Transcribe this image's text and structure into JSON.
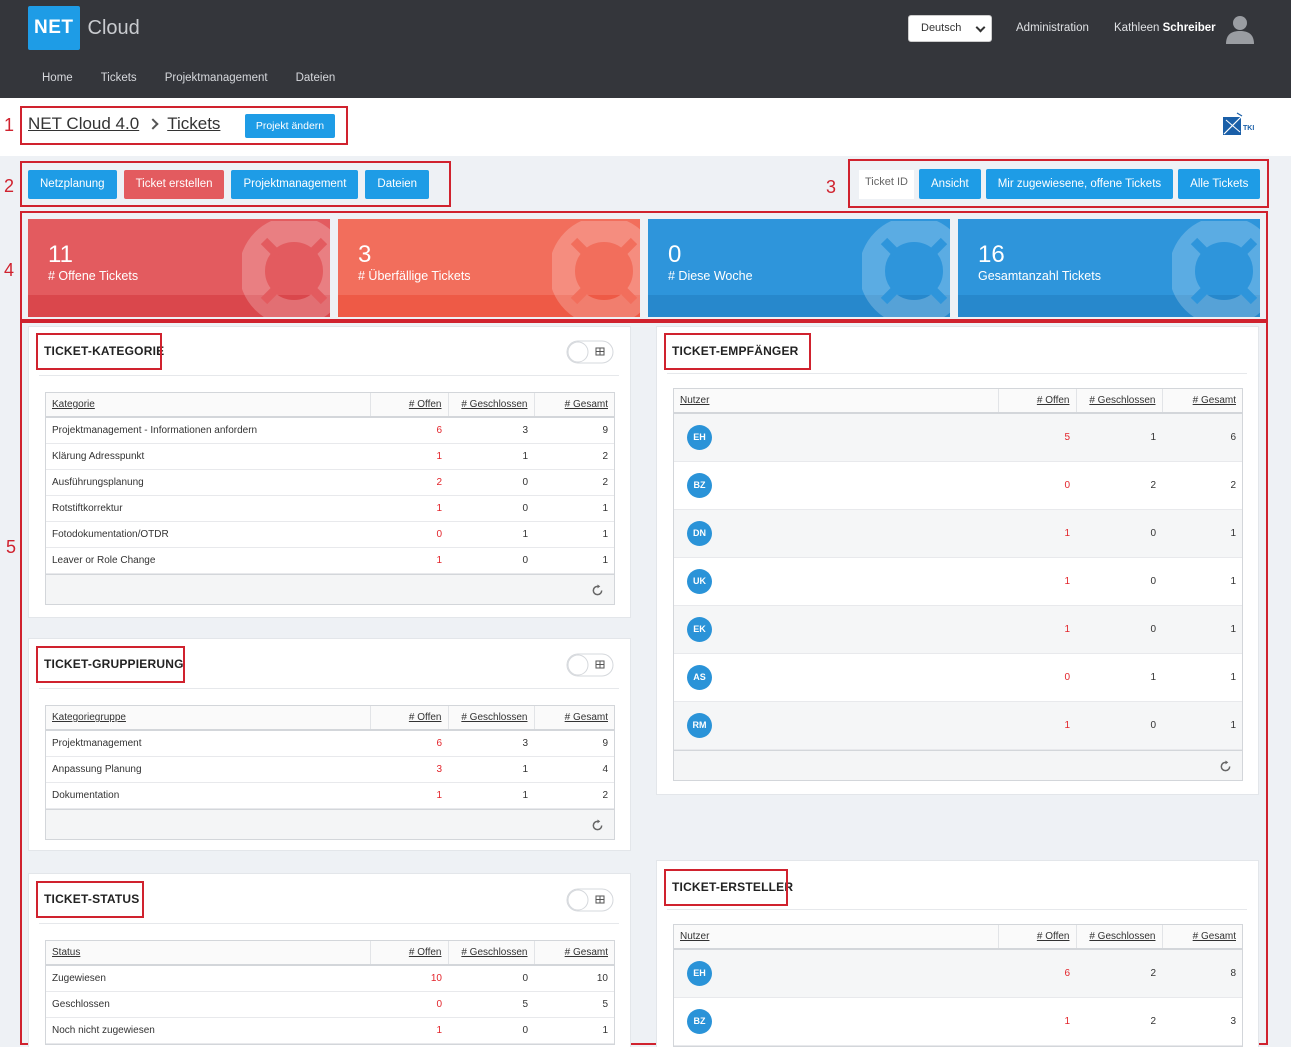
{
  "header": {
    "logo_net": "NET",
    "logo_cloud": "Cloud",
    "language": "Deutsch",
    "admin": "Administration",
    "user_first": "Kathleen",
    "user_last": "Schreiber",
    "nav": [
      "Home",
      "Tickets",
      "Projektmanagement",
      "Dateien"
    ]
  },
  "breadcrumb": {
    "project": "NET Cloud 4.0",
    "page": "Tickets",
    "change_project": "Projekt ändern",
    "partner_logo": "TKI"
  },
  "markers": [
    "1",
    "2",
    "3",
    "4",
    "5"
  ],
  "actions": [
    "Netzplanung",
    "Ticket erstellen",
    "Projektmanagement",
    "Dateien"
  ],
  "filters": {
    "ticket_id_label": "Ticket ID",
    "buttons": [
      "Ansicht",
      "Mir zugewiesene, offene Tickets",
      "Alle Tickets"
    ]
  },
  "stats": [
    {
      "value": "11",
      "label": "# Offene Tickets",
      "color": "#e35b5f",
      "foot": "#da474c"
    },
    {
      "value": "3",
      "label": "# Überfällige Tickets",
      "color": "#f26e5c",
      "foot": "#ee5a46"
    },
    {
      "value": "0",
      "label": "# Diese Woche",
      "color": "#2e95db",
      "foot": "#2788cc"
    },
    {
      "value": "16",
      "label": "Gesamtanzahl Tickets",
      "color": "#2e95db",
      "foot": "#2788cc"
    }
  ],
  "colors": {
    "accent": "#1e9ce6",
    "danger": "#e35b5f",
    "open_value": "#e3242b",
    "annotation": "#d0222e"
  },
  "cols": {
    "offen": "# Offen",
    "geschlossen": "# Geschlossen",
    "gesamt": "# Gesamt"
  },
  "kategorie": {
    "title": "TICKET-KATEGORIE",
    "first_col": "Kategorie",
    "rows": [
      {
        "name": "Projektmanagement - Informationen anfordern",
        "offen": "6",
        "geschlossen": "3",
        "gesamt": "9"
      },
      {
        "name": "Klärung Adresspunkt",
        "offen": "1",
        "geschlossen": "1",
        "gesamt": "2"
      },
      {
        "name": "Ausführungsplanung",
        "offen": "2",
        "geschlossen": "0",
        "gesamt": "2"
      },
      {
        "name": "Rotstiftkorrektur",
        "offen": "1",
        "geschlossen": "0",
        "gesamt": "1"
      },
      {
        "name": "Fotodokumentation/OTDR",
        "offen": "0",
        "geschlossen": "1",
        "gesamt": "1"
      },
      {
        "name": "Leaver or Role Change",
        "offen": "1",
        "geschlossen": "0",
        "gesamt": "1"
      }
    ]
  },
  "gruppierung": {
    "title": "TICKET-GRUPPIERUNG",
    "first_col": "Kategoriegruppe",
    "rows": [
      {
        "name": "Projektmanagement",
        "offen": "6",
        "geschlossen": "3",
        "gesamt": "9"
      },
      {
        "name": "Anpassung Planung",
        "offen": "3",
        "geschlossen": "1",
        "gesamt": "4"
      },
      {
        "name": "Dokumentation",
        "offen": "1",
        "geschlossen": "1",
        "gesamt": "2"
      }
    ]
  },
  "status": {
    "title": "TICKET-STATUS",
    "first_col": "Status",
    "rows": [
      {
        "name": "Zugewiesen",
        "offen": "10",
        "geschlossen": "0",
        "gesamt": "10"
      },
      {
        "name": "Geschlossen",
        "offen": "0",
        "geschlossen": "5",
        "gesamt": "5"
      },
      {
        "name": "Noch nicht zugewiesen",
        "offen": "1",
        "geschlossen": "0",
        "gesamt": "1"
      }
    ]
  },
  "empfaenger": {
    "title": "TICKET-EMPFÄNGER",
    "first_col": "Nutzer",
    "rows": [
      {
        "initials": "EH",
        "offen": "5",
        "geschlossen": "1",
        "gesamt": "6"
      },
      {
        "initials": "BZ",
        "offen": "0",
        "geschlossen": "2",
        "gesamt": "2"
      },
      {
        "initials": "DN",
        "offen": "1",
        "geschlossen": "0",
        "gesamt": "1"
      },
      {
        "initials": "UK",
        "offen": "1",
        "geschlossen": "0",
        "gesamt": "1"
      },
      {
        "initials": "EK",
        "offen": "1",
        "geschlossen": "0",
        "gesamt": "1"
      },
      {
        "initials": "AS",
        "offen": "0",
        "geschlossen": "1",
        "gesamt": "1"
      },
      {
        "initials": "RM",
        "offen": "1",
        "geschlossen": "0",
        "gesamt": "1"
      }
    ]
  },
  "ersteller": {
    "title": "TICKET-ERSTELLER",
    "first_col": "Nutzer",
    "rows": [
      {
        "initials": "EH",
        "offen": "6",
        "geschlossen": "2",
        "gesamt": "8"
      },
      {
        "initials": "BZ",
        "offen": "1",
        "geschlossen": "2",
        "gesamt": "3"
      }
    ]
  }
}
